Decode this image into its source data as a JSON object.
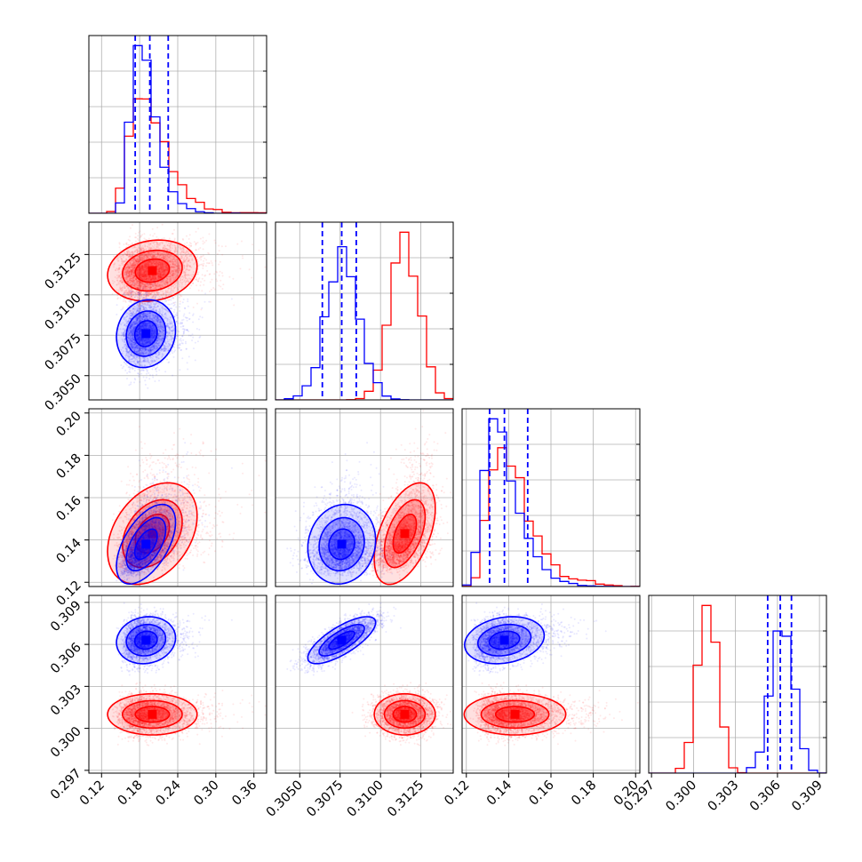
{
  "chart_data": {
    "type": "corner",
    "grid": true,
    "series": [
      {
        "name": "",
        "color": "#ff0000",
        "mean": [
          0.2,
          0.3115,
          0.143,
          0.301
        ],
        "std": [
          0.03,
          0.0009,
          0.01,
          0.0007
        ],
        "corr": [
          [
            1.0,
            0.15,
            0.35,
            0.0
          ],
          [
            0.15,
            1.0,
            0.5,
            0.0
          ],
          [
            0.35,
            0.5,
            1.0,
            0.0
          ],
          [
            0.0,
            0.0,
            0.0,
            1.0
          ]
        ],
        "skew": [
          1.0,
          0.0,
          1.2,
          0.0
        ]
      },
      {
        "name": "",
        "color": "#0000ff",
        "mean": [
          0.19,
          0.3076,
          0.138,
          0.3063
        ],
        "std": [
          0.02,
          0.001,
          0.008,
          0.0008
        ],
        "corr": [
          [
            1.0,
            0.1,
            0.55,
            0.1
          ],
          [
            0.1,
            1.0,
            0.1,
            0.75
          ],
          [
            0.55,
            0.1,
            1.0,
            0.2
          ],
          [
            0.1,
            0.75,
            0.2,
            1.0
          ]
        ],
        "skew": [
          0.9,
          0.0,
          1.0,
          0.0
        ],
        "quantile_lines": [
          [
            0.173,
            0.196,
            0.225
          ],
          [
            0.3064,
            0.3076,
            0.3085
          ],
          [
            0.131,
            0.138,
            0.149
          ],
          [
            0.3053,
            0.3062,
            0.307
          ]
        ]
      }
    ],
    "parameters": [
      {
        "range": [
          0.1,
          0.38
        ],
        "ticks": [
          "0.12",
          "0.18",
          "0.24",
          "0.30",
          "0.36"
        ],
        "tick_values": [
          0.12,
          0.18,
          0.24,
          0.3,
          0.36
        ]
      },
      {
        "range": [
          0.3035,
          0.3145
        ],
        "ticks": [
          "0.3050",
          "0.3075",
          "0.3100",
          "0.3125"
        ],
        "tick_values": [
          0.305,
          0.3075,
          0.31,
          0.3125
        ]
      },
      {
        "range": [
          0.118,
          0.202
        ],
        "ticks": [
          "0.12",
          "0.14",
          "0.16",
          "0.18",
          "0.20"
        ],
        "tick_values": [
          0.12,
          0.14,
          0.16,
          0.18,
          0.2
        ]
      },
      {
        "range": [
          0.2968,
          0.3095
        ],
        "ticks": [
          "0.297",
          "0.300",
          "0.303",
          "0.306",
          "0.309"
        ],
        "tick_values": [
          0.297,
          0.3,
          0.303,
          0.306,
          0.309
        ]
      }
    ]
  }
}
